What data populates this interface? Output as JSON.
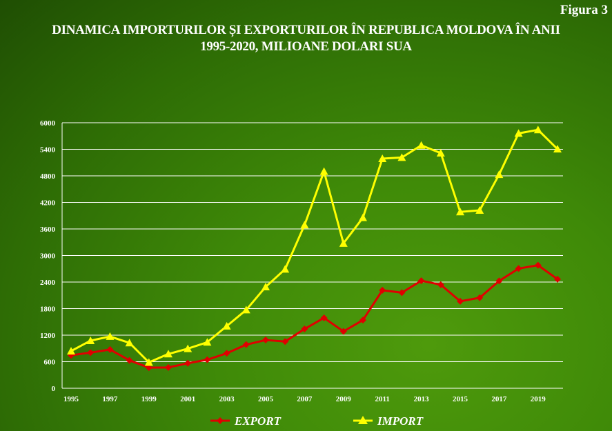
{
  "figure_label": "Figura 3",
  "title_line1": "DINAMICA IMPORTURILOR ȘI EXPORTURILOR ÎN REPUBLICA MOLDOVA ÎN ANII",
  "title_line2": "1995-2020,  MILIOANE DOLARI SUA",
  "colors": {
    "export": "#e00000",
    "import": "#ffff00",
    "grid": "#ffffff",
    "text": "#ffffff"
  },
  "chart_data": {
    "type": "line",
    "title": "DINAMICA IMPORTURILOR ȘI EXPORTURILOR ÎN REPUBLICA MOLDOVA ÎN ANII 1995-2020,  MILIOANE DOLARI SUA",
    "x": [
      1995,
      1996,
      1997,
      1998,
      1999,
      2000,
      2001,
      2002,
      2003,
      2004,
      2005,
      2006,
      2007,
      2008,
      2009,
      2010,
      2011,
      2012,
      2013,
      2014,
      2015,
      2016,
      2017,
      2018,
      2019,
      2020
    ],
    "x_tick_labels": [
      "1995",
      "1997",
      "1999",
      "2001",
      "2003",
      "2005",
      "2007",
      "2009",
      "2011",
      "2013",
      "2015",
      "2017",
      "2019"
    ],
    "y_tick_labels": [
      "0",
      "600",
      "1200",
      "1800",
      "2400",
      "3000",
      "3600",
      "4200",
      "4800",
      "5400",
      "6000"
    ],
    "ylim": [
      0,
      6000
    ],
    "grid": true,
    "legend_position": "bottom",
    "series": [
      {
        "name": "EXPORT",
        "marker": "diamond",
        "values": [
          745,
          805,
          875,
          630,
          465,
          470,
          565,
          645,
          790,
          985,
          1090,
          1055,
          1340,
          1590,
          1285,
          1540,
          2215,
          2160,
          2430,
          2340,
          1965,
          2045,
          2425,
          2705,
          2780,
          2465
        ]
      },
      {
        "name": "IMPORT",
        "marker": "triangle",
        "values": [
          840,
          1075,
          1170,
          1025,
          585,
          775,
          895,
          1040,
          1405,
          1770,
          2290,
          2690,
          3690,
          4900,
          3275,
          3855,
          5190,
          5215,
          5490,
          5315,
          3985,
          4020,
          4830,
          5760,
          5840,
          5405
        ]
      }
    ]
  }
}
